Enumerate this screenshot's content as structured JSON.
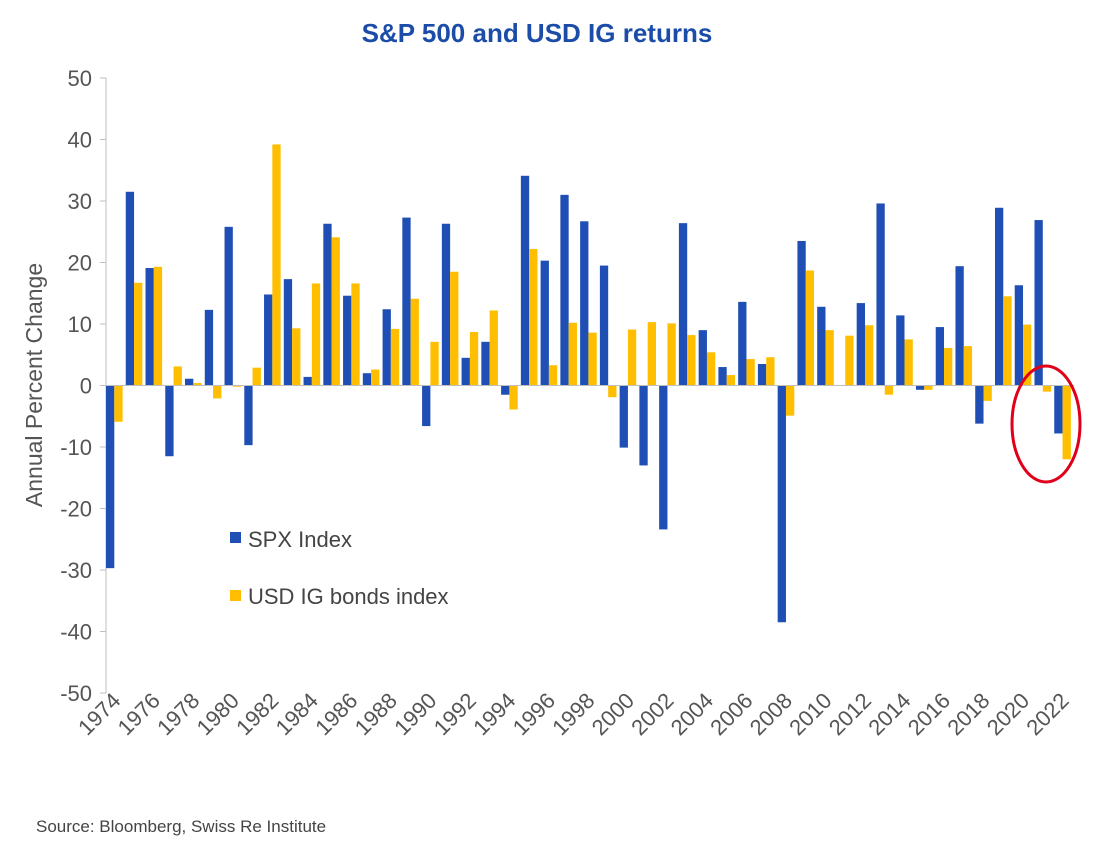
{
  "chart_data": {
    "type": "bar",
    "title": "S&P 500 and USD IG returns",
    "ylabel": "Annual Percent Change",
    "xlabel": "",
    "ylim": [
      -50,
      50
    ],
    "yticks": [
      50,
      40,
      30,
      20,
      10,
      0,
      -10,
      -20,
      -30,
      -40,
      -50
    ],
    "categories": [
      "1974",
      "1975",
      "1976",
      "1977",
      "1978",
      "1979",
      "1980",
      "1981",
      "1982",
      "1983",
      "1984",
      "1985",
      "1986",
      "1987",
      "1988",
      "1989",
      "1990",
      "1991",
      "1992",
      "1993",
      "1994",
      "1995",
      "1996",
      "1997",
      "1998",
      "1999",
      "2000",
      "2001",
      "2002",
      "2003",
      "2004",
      "2005",
      "2006",
      "2007",
      "2008",
      "2009",
      "2010",
      "2011",
      "2012",
      "2013",
      "2014",
      "2015",
      "2016",
      "2017",
      "2018",
      "2019",
      "2020",
      "2021",
      "2022"
    ],
    "x_tick_labels": [
      "1974",
      "1976",
      "1978",
      "1980",
      "1982",
      "1984",
      "1986",
      "1988",
      "1990",
      "1992",
      "1994",
      "1996",
      "1998",
      "2000",
      "2002",
      "2004",
      "2006",
      "2008",
      "2010",
      "2012",
      "2014",
      "2016",
      "2018",
      "2020",
      "2022"
    ],
    "series": [
      {
        "name": "SPX Index",
        "color": "#1f4fb5",
        "values": [
          -29.7,
          31.5,
          19.1,
          -11.5,
          1.1,
          12.3,
          25.8,
          -9.7,
          14.8,
          17.3,
          1.4,
          26.3,
          14.6,
          2.0,
          12.4,
          27.3,
          -6.6,
          26.3,
          4.5,
          7.1,
          -1.5,
          34.1,
          20.3,
          31.0,
          26.7,
          19.5,
          -10.1,
          -13.0,
          -23.4,
          26.4,
          9.0,
          3.0,
          13.6,
          3.5,
          -38.5,
          23.5,
          12.8,
          0.0,
          13.4,
          29.6,
          11.4,
          -0.7,
          9.5,
          19.4,
          -6.2,
          28.9,
          16.3,
          26.9,
          -7.8
        ]
      },
      {
        "name": "USD IG bonds index",
        "color": "#ffbf00",
        "values": [
          -5.9,
          16.7,
          19.3,
          3.1,
          0.4,
          -2.1,
          -0.2,
          2.9,
          39.2,
          9.3,
          16.6,
          24.1,
          16.6,
          2.6,
          9.2,
          14.1,
          7.1,
          18.5,
          8.7,
          12.2,
          -3.9,
          22.2,
          3.3,
          10.2,
          8.6,
          -1.9,
          9.1,
          10.3,
          10.1,
          8.2,
          5.4,
          1.7,
          4.3,
          4.6,
          -4.9,
          18.7,
          9.0,
          8.1,
          9.8,
          -1.5,
          7.5,
          -0.7,
          6.1,
          6.4,
          -2.5,
          14.5,
          9.9,
          -1.0,
          -12.0
        ]
      }
    ],
    "legend": {
      "placement": "lower-left",
      "items": [
        "SPX Index",
        "USD IG bonds index"
      ]
    },
    "grid": false,
    "annotation": {
      "type": "circle",
      "color": "#e0001a",
      "target": "2021-2022"
    },
    "source": "Source: Bloomberg, Swiss Re Institute"
  }
}
